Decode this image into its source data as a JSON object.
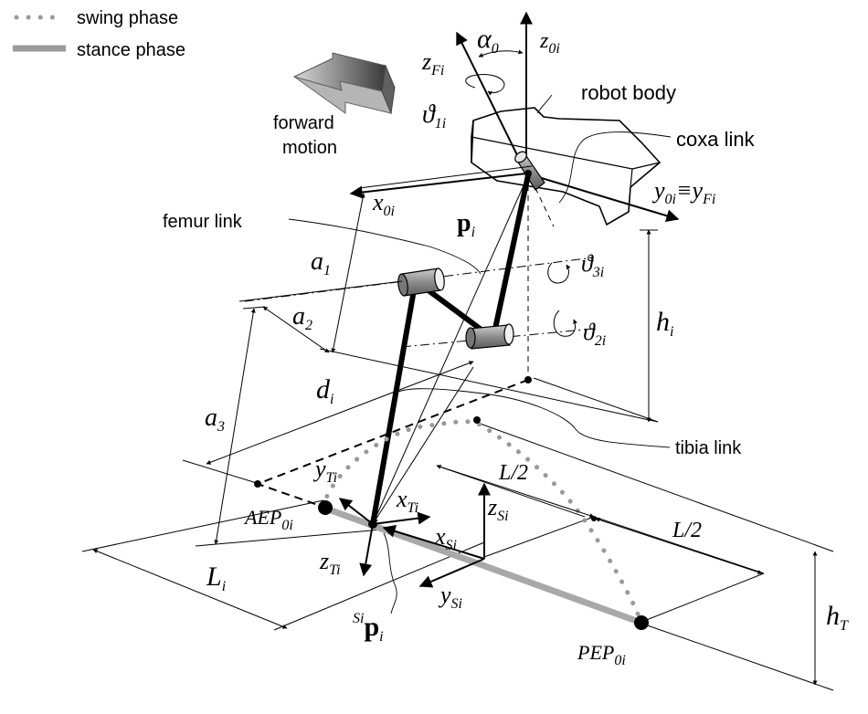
{
  "legend": {
    "swing_label": "swing phase",
    "stance_label": "stance phase",
    "swing_color": "#999999",
    "stance_color": "#999999"
  },
  "labels": {
    "forward_line1": "forward",
    "forward_line2": "motion",
    "robot_body": "robot body",
    "coxa_link": "coxa link",
    "femur_link": "femur link",
    "tibia_link": "tibia link"
  },
  "symbols": {
    "alpha0": {
      "base": "α",
      "sub": "0"
    },
    "z0i": {
      "base": "z",
      "sub": "0i"
    },
    "zFi": {
      "base": "z",
      "sub": "Fi"
    },
    "theta1i": {
      "base": "ϑ",
      "sub": "1i"
    },
    "y0i_eq_yFi": {
      "base": "y",
      "sub": "0i",
      "eq": "≡",
      "base2": "y",
      "sub2": "Fi"
    },
    "x0i": {
      "base": "x",
      "sub": "0i"
    },
    "pi": {
      "base": "p",
      "sub": "i"
    },
    "theta3i": {
      "base": "ϑ",
      "sub": "3i"
    },
    "theta2i": {
      "base": "ϑ",
      "sub": "2i"
    },
    "a1": {
      "base": "a",
      "sub": "1"
    },
    "a2": {
      "base": "a",
      "sub": "2"
    },
    "a3": {
      "base": "a",
      "sub": "3"
    },
    "hi": {
      "base": "h",
      "sub": "i"
    },
    "di": {
      "base": "d",
      "sub": "i"
    },
    "yTi": {
      "base": "y",
      "sub": "Ti"
    },
    "xTi": {
      "base": "x",
      "sub": "Ti"
    },
    "zTi": {
      "base": "z",
      "sub": "Ti"
    },
    "zSi": {
      "base": "z",
      "sub": "Si"
    },
    "xSi": {
      "base": "x",
      "sub": "Si"
    },
    "ySi": {
      "base": "y",
      "sub": "Si"
    },
    "Li": {
      "base": "L",
      "sub": "i"
    },
    "hT": {
      "base": "h",
      "sub": "T"
    },
    "half_upper": "L/2",
    "half_lower": "L/2",
    "AEP": {
      "base": "AEP",
      "sub": "0i"
    },
    "PEP": {
      "base": "PEP",
      "sub": "0i"
    },
    "Sipi": {
      "pre": "Si",
      "base": "p",
      "sub": "i"
    }
  }
}
